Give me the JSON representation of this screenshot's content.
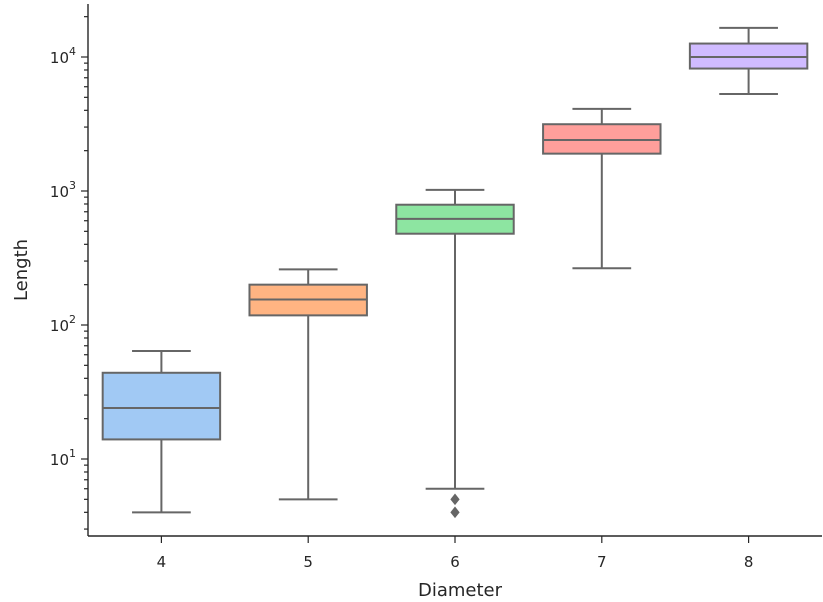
{
  "chart_data": {
    "type": "box",
    "title": "",
    "xlabel": "Diameter",
    "ylabel": "Length",
    "yscale": "log",
    "ylim": [
      2.6,
      25000
    ],
    "y_major_ticks": [
      10,
      100,
      1000,
      10000
    ],
    "y_tick_labels": [
      "10^1",
      "10^2",
      "10^3",
      "10^4"
    ],
    "grid": false,
    "categories": [
      "4",
      "5",
      "6",
      "7",
      "8"
    ],
    "boxes": [
      {
        "category": "4",
        "whisker_low": 4,
        "q1": 14,
        "median": 24,
        "q3": 44,
        "whisker_high": 64,
        "outliers": [],
        "color": "#a1c9f4"
      },
      {
        "category": "5",
        "whisker_low": 5,
        "q1": 118,
        "median": 155,
        "q3": 200,
        "whisker_high": 260,
        "outliers": [],
        "color": "#ffb482"
      },
      {
        "category": "6",
        "whisker_low": 6,
        "q1": 480,
        "median": 620,
        "q3": 790,
        "whisker_high": 1020,
        "outliers": [
          4,
          5
        ],
        "color": "#8de5a1"
      },
      {
        "category": "7",
        "whisker_low": 265,
        "q1": 1900,
        "median": 2400,
        "q3": 3150,
        "whisker_high": 4100,
        "outliers": [],
        "color": "#ff9f9b"
      },
      {
        "category": "8",
        "whisker_low": 5300,
        "q1": 8200,
        "median": 10000,
        "q3": 12600,
        "whisker_high": 16500,
        "outliers": [],
        "color": "#d0bbff"
      }
    ],
    "line_color": "#666666",
    "axis_color": "#262626"
  }
}
